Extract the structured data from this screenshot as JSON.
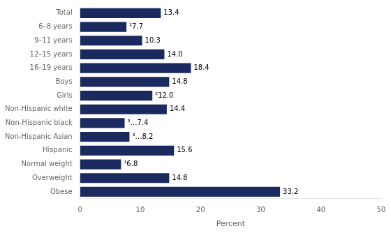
{
  "chart_data": {
    "type": "bar",
    "orientation": "horizontal",
    "categories": [
      "Obese",
      "Overweight",
      "Normal weight",
      "Hispanic",
      "Non-Hispanic Asian",
      "Non-Hispanic black",
      "Non-Hispanic white",
      "Girls",
      "Boys",
      "16–19 years",
      "12–15 years",
      "9–11 years",
      "6–8 years",
      "Total"
    ],
    "values": [
      33.2,
      14.8,
      6.8,
      15.6,
      8.2,
      7.4,
      14.4,
      12.0,
      14.8,
      18.4,
      14.0,
      10.3,
      7.7,
      13.4
    ],
    "value_labels": [
      "33.2",
      "14.8",
      "¹6.8",
      "15.6",
      "³…8.2",
      "³…7.4",
      "14.4",
      "²12.0",
      "14.8",
      "18.4",
      "14.0",
      "10.3",
      "¹7.7",
      "13.4"
    ],
    "data_labels": true,
    "color": "#1b2a5e",
    "xlabel": "Percent",
    "xlim": [
      0,
      50
    ],
    "xticks": [
      0,
      10,
      20,
      30,
      40,
      50
    ],
    "grid": false
  }
}
